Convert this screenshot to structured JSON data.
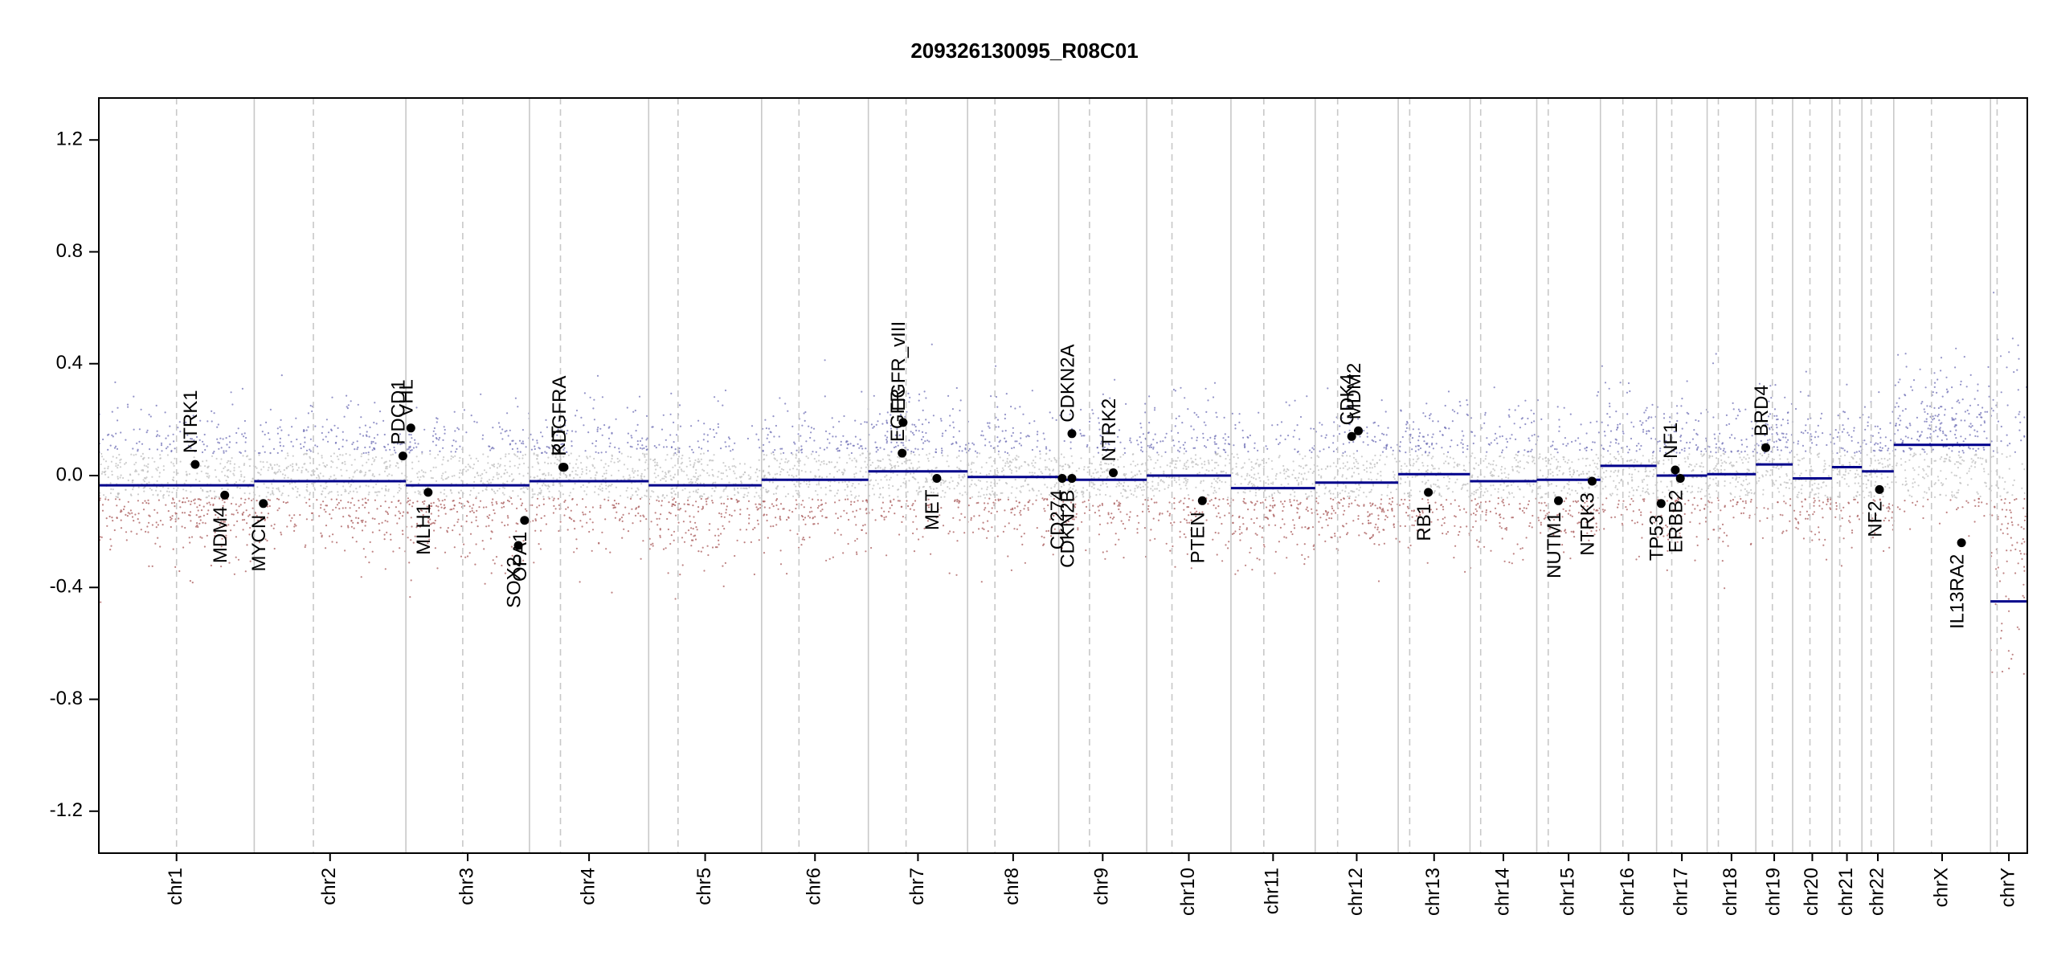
{
  "chart_data": {
    "type": "scatter",
    "title": "209326130095_R08C01",
    "xlabel": "",
    "ylabel": "",
    "ylim": [
      -1.35,
      1.35
    ],
    "yticks": [
      "1.2",
      "0.8",
      "0.4",
      "0.0",
      "-0.4",
      "-0.8",
      "-1.2"
    ],
    "ytick_values": [
      1.2,
      0.8,
      0.4,
      0.0,
      -0.4,
      -0.8,
      -1.2
    ],
    "colors": {
      "gain": "#6f6fb5",
      "loss": "#a85a5a",
      "neutral": "#bdbdbd",
      "segment": "#00008b",
      "grid": "#c8c8c8"
    },
    "chromosomes": [
      {
        "name": "chr1",
        "length": 249,
        "segment": -0.035,
        "centromere": 0.5
      },
      {
        "name": "chr2",
        "length": 243,
        "segment": -0.02,
        "centromere": 0.39
      },
      {
        "name": "chr3",
        "length": 198,
        "segment": -0.035,
        "centromere": 0.46
      },
      {
        "name": "chr4",
        "length": 191,
        "segment": -0.02,
        "centromere": 0.26
      },
      {
        "name": "chr5",
        "length": 181,
        "segment": -0.035,
        "centromere": 0.26
      },
      {
        "name": "chr6",
        "length": 171,
        "segment": -0.015,
        "centromere": 0.35
      },
      {
        "name": "chr7",
        "length": 159,
        "segment": 0.015,
        "centromere": 0.38
      },
      {
        "name": "chr8",
        "length": 146,
        "segment": -0.005,
        "centromere": 0.3
      },
      {
        "name": "chr9",
        "length": 141,
        "segment": -0.015,
        "centromere": 0.35
      },
      {
        "name": "chr10",
        "length": 135,
        "segment": 0.0,
        "centromere": 0.3
      },
      {
        "name": "chr11",
        "length": 135,
        "segment": -0.045,
        "centromere": 0.39
      },
      {
        "name": "chr12",
        "length": 133,
        "segment": -0.025,
        "centromere": 0.27
      },
      {
        "name": "chr13",
        "length": 115,
        "segment": 0.005,
        "centromere": 0.16
      },
      {
        "name": "chr14",
        "length": 107,
        "segment": -0.02,
        "centromere": 0.16
      },
      {
        "name": "chr15",
        "length": 102,
        "segment": -0.015,
        "centromere": 0.18
      },
      {
        "name": "chr16",
        "length": 90,
        "segment": 0.035,
        "centromere": 0.4
      },
      {
        "name": "chr17",
        "length": 81,
        "segment": 0.0,
        "centromere": 0.3
      },
      {
        "name": "chr18",
        "length": 78,
        "segment": 0.005,
        "centromere": 0.23
      },
      {
        "name": "chr19",
        "length": 59,
        "segment": 0.04,
        "centromere": 0.45
      },
      {
        "name": "chr20",
        "length": 63,
        "segment": -0.01,
        "centromere": 0.44
      },
      {
        "name": "chr21",
        "length": 48,
        "segment": 0.03,
        "centromere": 0.26
      },
      {
        "name": "chr22",
        "length": 51,
        "segment": 0.015,
        "centromere": 0.29
      },
      {
        "name": "chrX",
        "length": 155,
        "segment": 0.11,
        "centromere": 0.39
      },
      {
        "name": "chrY",
        "length": 59,
        "segment": -0.45,
        "centromere": 0.18
      }
    ],
    "genes": [
      {
        "name": "NTRK1",
        "chr": "chr1",
        "pos": 0.62,
        "value": 0.04,
        "label": "above"
      },
      {
        "name": "MDM4",
        "chr": "chr1",
        "pos": 0.81,
        "value": -0.07,
        "label": "below"
      },
      {
        "name": "MYCN",
        "chr": "chr2",
        "pos": 0.06,
        "value": -0.1,
        "label": "below"
      },
      {
        "name": "PDCD1",
        "chr": "chr2",
        "pos": 0.98,
        "value": 0.07,
        "label": "above"
      },
      {
        "name": "VHL",
        "chr": "chr3",
        "pos": 0.04,
        "value": 0.17,
        "label": "above"
      },
      {
        "name": "MLH1",
        "chr": "chr3",
        "pos": 0.18,
        "value": -0.06,
        "label": "below"
      },
      {
        "name": "SOX2",
        "chr": "chr3",
        "pos": 0.91,
        "value": -0.25,
        "label": "below"
      },
      {
        "name": "OPA1",
        "chr": "chr3",
        "pos": 0.96,
        "value": -0.16,
        "label": "below"
      },
      {
        "name": "KIT",
        "chr": "chr4",
        "pos": 0.28,
        "value": 0.03,
        "label": "above"
      },
      {
        "name": "PDGFRA",
        "chr": "chr4",
        "pos": 0.29,
        "value": 0.03,
        "label": "above"
      },
      {
        "name": "EGFR",
        "chr": "chr7",
        "pos": 0.34,
        "value": 0.08,
        "label": "above"
      },
      {
        "name": "EGFR_vIII",
        "chr": "chr7",
        "pos": 0.35,
        "value": 0.19,
        "label": "above"
      },
      {
        "name": "MET",
        "chr": "chr7",
        "pos": 0.69,
        "value": -0.01,
        "label": "below"
      },
      {
        "name": "CDKN2A",
        "chr": "chr9",
        "pos": 0.15,
        "value": 0.15,
        "label": "above"
      },
      {
        "name": "CDKN2B",
        "chr": "chr9",
        "pos": 0.15,
        "value": -0.01,
        "label": "below"
      },
      {
        "name": "CD274",
        "chr": "chr9",
        "pos": 0.04,
        "value": -0.01,
        "label": "below"
      },
      {
        "name": "NTRK2",
        "chr": "chr9",
        "pos": 0.62,
        "value": 0.01,
        "label": "above"
      },
      {
        "name": "PTEN",
        "chr": "chr10",
        "pos": 0.66,
        "value": -0.09,
        "label": "below"
      },
      {
        "name": "CDK4",
        "chr": "chr12",
        "pos": 0.44,
        "value": 0.14,
        "label": "above"
      },
      {
        "name": "MDM2",
        "chr": "chr12",
        "pos": 0.52,
        "value": 0.16,
        "label": "above"
      },
      {
        "name": "RB1",
        "chr": "chr13",
        "pos": 0.42,
        "value": -0.06,
        "label": "below"
      },
      {
        "name": "NUTM1",
        "chr": "chr15",
        "pos": 0.34,
        "value": -0.09,
        "label": "below"
      },
      {
        "name": "NTRK3",
        "chr": "chr15",
        "pos": 0.87,
        "value": -0.02,
        "label": "below"
      },
      {
        "name": "TP53",
        "chr": "chr17",
        "pos": 0.09,
        "value": -0.1,
        "label": "below"
      },
      {
        "name": "NF1",
        "chr": "chr17",
        "pos": 0.37,
        "value": 0.02,
        "label": "above"
      },
      {
        "name": "ERBB2",
        "chr": "chr17",
        "pos": 0.47,
        "value": -0.01,
        "label": "below"
      },
      {
        "name": "BRD4",
        "chr": "chr19",
        "pos": 0.27,
        "value": 0.1,
        "label": "above"
      },
      {
        "name": "NF2",
        "chr": "chr22",
        "pos": 0.55,
        "value": -0.05,
        "label": "below"
      },
      {
        "name": "IL13RA2",
        "chr": "chrX",
        "pos": 0.7,
        "value": -0.24,
        "label": "below"
      }
    ],
    "grid": true,
    "legend": "none"
  }
}
